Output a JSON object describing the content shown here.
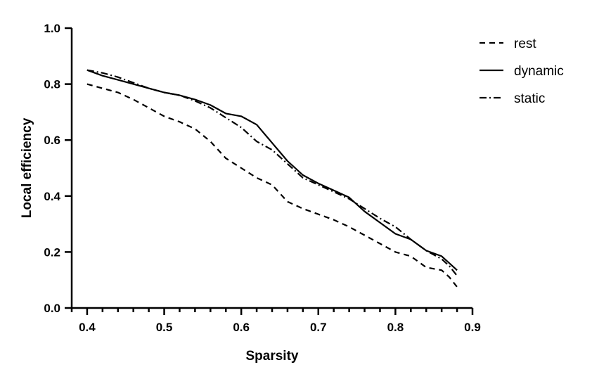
{
  "chart_data": {
    "type": "line",
    "title": "",
    "xlabel": "Sparsity",
    "ylabel": "Local efficiency",
    "xlim": [
      0.38,
      0.9
    ],
    "ylim": [
      0.0,
      1.0
    ],
    "x_ticks": [
      "0.4",
      "0.5",
      "0.6",
      "0.7",
      "0.8",
      "0.9"
    ],
    "y_ticks": [
      "0.0",
      "0.2",
      "0.4",
      "0.6",
      "0.8",
      "1.0"
    ],
    "x_minor_step": 0.02,
    "legend_position": "top-right",
    "grid": false,
    "x": [
      0.4,
      0.42,
      0.44,
      0.46,
      0.48,
      0.5,
      0.52,
      0.54,
      0.56,
      0.58,
      0.6,
      0.62,
      0.64,
      0.66,
      0.68,
      0.7,
      0.72,
      0.74,
      0.76,
      0.78,
      0.8,
      0.82,
      0.84,
      0.86,
      0.87,
      0.88
    ],
    "series": [
      {
        "name": "rest",
        "style": "dashed",
        "values": [
          0.8,
          0.785,
          0.77,
          0.745,
          0.715,
          0.685,
          0.665,
          0.64,
          0.595,
          0.535,
          0.5,
          0.465,
          0.44,
          0.38,
          0.355,
          0.335,
          0.315,
          0.29,
          0.26,
          0.23,
          0.2,
          0.185,
          0.145,
          0.135,
          0.11,
          0.075
        ]
      },
      {
        "name": "dynamic",
        "style": "solid",
        "values": [
          0.85,
          0.83,
          0.815,
          0.8,
          0.785,
          0.77,
          0.76,
          0.745,
          0.725,
          0.695,
          0.685,
          0.655,
          0.59,
          0.525,
          0.475,
          0.445,
          0.42,
          0.395,
          0.345,
          0.305,
          0.265,
          0.245,
          0.205,
          0.185,
          0.16,
          0.135
        ]
      },
      {
        "name": "static",
        "style": "dashdot",
        "values": [
          0.85,
          0.84,
          0.825,
          0.805,
          0.785,
          0.77,
          0.76,
          0.74,
          0.715,
          0.68,
          0.645,
          0.595,
          0.565,
          0.515,
          0.465,
          0.44,
          0.415,
          0.39,
          0.355,
          0.32,
          0.29,
          0.245,
          0.205,
          0.175,
          0.15,
          0.115
        ]
      }
    ]
  }
}
